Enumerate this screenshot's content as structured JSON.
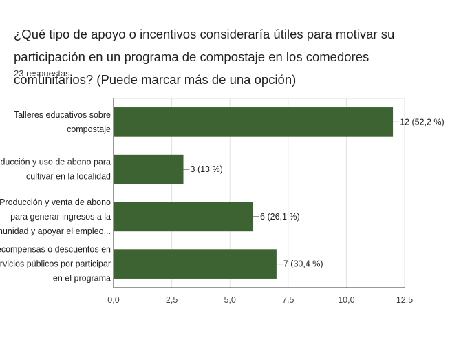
{
  "form": {
    "question": "¿Qué tipo de apoyo o incentivos consideraría útiles para motivar su participación en un programa de compostaje en los comedores comunitarios? (Puede marcar más de una opción)",
    "responses": "23 respuestas"
  },
  "chart_data": {
    "type": "bar",
    "orientation": "horizontal",
    "categories": [
      [
        "Talleres educativos sobre",
        "compostaje"
      ],
      [
        "Producción y uso de abono para",
        "cultivar en la localidad"
      ],
      [
        "Producción y venta de abono",
        "para generar ingresos a la",
        "comunidad y apoyar el empleo..."
      ],
      [
        "Recompensas o descuentos en",
        "servicios públicos por participar",
        "en el programa"
      ]
    ],
    "values": [
      12,
      3,
      6,
      7
    ],
    "data_labels": [
      "12 (52,2 %)",
      "3 (13 %)",
      "6 (26,1 %)",
      "7 (30,4 %)"
    ],
    "xlim": [
      0,
      12.5
    ],
    "xticks": [
      0,
      2.5,
      5,
      7.5,
      10,
      12.5
    ],
    "xtick_labels": [
      "0,0",
      "2,5",
      "5,0",
      "7,5",
      "10,0",
      "12,5"
    ],
    "grid": true,
    "colors": {
      "bar": "#3d6332",
      "grid": "#e0e0e0",
      "axis": "#333333"
    }
  }
}
